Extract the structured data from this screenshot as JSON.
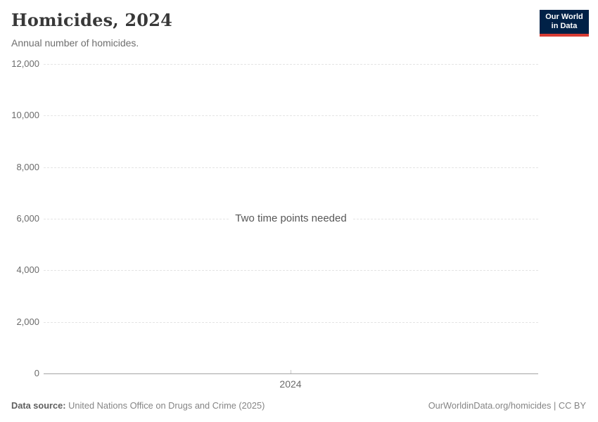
{
  "header": {
    "title": "Homicides, 2024",
    "subtitle": "Annual number of homicides."
  },
  "logo": {
    "line1": "Our World",
    "line2": "in Data",
    "bg_color": "#002147",
    "accent_color": "#d73c34"
  },
  "chart_data": {
    "type": "line",
    "title": "Homicides, 2024",
    "subtitle": "Annual number of homicides.",
    "series": [],
    "empty_message": "Two time points needed",
    "xlabel": "",
    "ylabel": "",
    "x_ticks": [
      "2024"
    ],
    "ylim": [
      0,
      12000
    ],
    "y_tick_values": [
      12000,
      10000,
      8000,
      6000,
      4000,
      2000,
      0
    ],
    "y_tick_labels": [
      "12,000",
      "10,000",
      "8,000",
      "6,000",
      "4,000",
      "2,000",
      "0"
    ],
    "grid": "horizontal-dashed",
    "legend": "none"
  },
  "footer": {
    "datasource_label": "Data source:",
    "datasource_text": "United Nations Office on Drugs and Crime (2025)",
    "credit": "OurWorldinData.org/homicides | CC BY"
  }
}
